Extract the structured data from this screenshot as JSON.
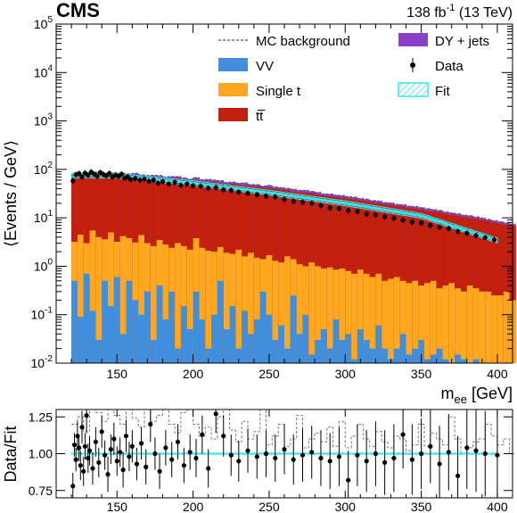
{
  "header": {
    "experiment": "CMS",
    "lumi": "138",
    "lumi_unit": "fb",
    "lumi_exp": "-1",
    "energy": "(13 TeV)"
  },
  "chart_data": [
    {
      "type": "area",
      "ylabel": "⟨Events / GeV⟩",
      "xlabel_main": "m",
      "xlabel_sub": "ee",
      "xlabel_unit": "[GeV]",
      "yscale": "log",
      "xlim": [
        110,
        410
      ],
      "ylim": [
        0.01,
        100000
      ],
      "xticks": [
        150,
        200,
        250,
        300,
        350,
        400
      ],
      "yticks": [
        {
          "value": 0.01,
          "base": "10",
          "exp": "-2"
        },
        {
          "value": 0.1,
          "base": "10",
          "exp": "-1"
        },
        {
          "value": 1,
          "base": "10",
          "exp": "0"
        },
        {
          "value": 10,
          "base": "10",
          "exp": "1"
        },
        {
          "value": 100,
          "base": "10",
          "exp": "2"
        },
        {
          "value": 1000,
          "base": "10",
          "exp": "3"
        },
        {
          "value": 10000,
          "base": "10",
          "exp": "4"
        },
        {
          "value": 100000,
          "base": "10",
          "exp": "5"
        }
      ],
      "legend": [
        {
          "key": "mc",
          "label": "MC background",
          "style": "dashed"
        },
        {
          "key": "dy",
          "label": "DY + jets",
          "color": "#8a3fc8"
        },
        {
          "key": "vv",
          "label": "VV",
          "color": "#3f8fdc"
        },
        {
          "key": "data",
          "label": "Data",
          "style": "marker"
        },
        {
          "key": "st",
          "label": "Single t",
          "color": "#ffa71f"
        },
        {
          "key": "fit",
          "label": "Fit",
          "color": "#2ee8ee"
        },
        {
          "key": "tt",
          "label": "tt̅",
          "color": "#c21f0c"
        }
      ],
      "legend_placement": "top-right",
      "x_start": 120,
      "bin_width": 4,
      "tt": [
        70,
        75,
        79,
        72,
        80,
        76,
        74,
        78,
        73,
        75,
        72,
        70,
        68,
        71,
        66,
        64,
        63,
        66,
        60,
        58,
        59,
        57,
        54,
        55,
        52,
        50,
        50,
        48,
        46,
        45,
        44,
        42,
        41,
        40,
        38,
        37,
        35,
        34,
        33,
        32,
        30,
        29,
        28,
        27,
        26,
        25,
        24,
        23,
        22,
        21,
        20,
        19,
        18.5,
        17.5,
        17,
        16,
        15.5,
        15,
        14,
        13.5,
        13,
        12,
        11.5,
        11,
        10.5,
        10,
        9.5,
        9,
        8.5,
        8,
        7.6,
        7.2,
        6.8
      ],
      "st": [
        3.2,
        4.5,
        3.0,
        5.5,
        4.0,
        3.6,
        5.0,
        3.2,
        4.2,
        3.8,
        3.1,
        4.4,
        3.0,
        2.6,
        3.5,
        2.8,
        2.4,
        3.0,
        2.6,
        2.2,
        3.8,
        2.4,
        2.1,
        2.0,
        2.5,
        1.9,
        1.8,
        2.2,
        1.6,
        1.9,
        1.5,
        1.4,
        1.7,
        1.3,
        1.2,
        1.6,
        1.4,
        1.1,
        1.0,
        1.2,
        1.0,
        0.9,
        0.95,
        0.85,
        0.9,
        0.8,
        0.7,
        0.85,
        0.7,
        0.6,
        0.7,
        0.5,
        0.55,
        0.6,
        0.5,
        0.45,
        0.5,
        0.4,
        0.45,
        0.5,
        0.35,
        0.4,
        0.45,
        0.35,
        0.3,
        0.4,
        0.35,
        0.3,
        0.3,
        0.25,
        0.25,
        0.3,
        0.2
      ],
      "vv": [
        0.5,
        0.09,
        0.7,
        0.12,
        0.03,
        0.5,
        0.15,
        0.6,
        0.04,
        0.5,
        0.2,
        0.1,
        0.3,
        0.03,
        0.4,
        0.08,
        0.3,
        0.02,
        0.15,
        0.05,
        0.3,
        0.08,
        0.02,
        0.1,
        0.5,
        0.05,
        0.15,
        0.02,
        0.12,
        0.04,
        0.08,
        0.3,
        0.1,
        0.03,
        0.06,
        0.02,
        0.25,
        0.04,
        0.1,
        0.015,
        0.03,
        0.05,
        0.02,
        0.08,
        0.03,
        0.04,
        0.012,
        0.05,
        0.03,
        0.02,
        0.06,
        0.02,
        0.012,
        0.02,
        0.04,
        0.015,
        0.02,
        0.03,
        0.012,
        0.015,
        0.02,
        0.012,
        0.01,
        0.015,
        0.012,
        0.01,
        0.012,
        0.01,
        0.01,
        0.01,
        0.01,
        0.01,
        0.01
      ],
      "dy": [
        3,
        3,
        2,
        5,
        4,
        3,
        6,
        3,
        5,
        2,
        8,
        3,
        4,
        2,
        5,
        3,
        6,
        2,
        4,
        3,
        5,
        2,
        6,
        3,
        4,
        2,
        3,
        2,
        5,
        2,
        3,
        2,
        4,
        2,
        3,
        2,
        2.5,
        2,
        3,
        2,
        2.5,
        1.5,
        2,
        1.5,
        2,
        1.5,
        2,
        1.2,
        1.5,
        1.2,
        1.5,
        1.2,
        1.3,
        1.0,
        1.2,
        1.0,
        1.1,
        0.9,
        1.0,
        0.8,
        0.9,
        0.8,
        0.7,
        0.8,
        0.6,
        0.7,
        0.6,
        0.6,
        0.5,
        0.5,
        0.5,
        0.4,
        0.4
      ],
      "fit": {
        "x": [
          120,
          150,
          200,
          250,
          300,
          350,
          400
        ],
        "y": [
          75,
          74,
          52,
          33,
          20,
          11,
          3.4
        ]
      },
      "data": {
        "x": [
          121,
          123,
          125,
          127,
          129,
          131,
          133,
          135,
          137,
          139,
          141,
          143,
          145,
          147,
          149,
          151,
          153,
          155,
          157,
          159,
          162,
          165,
          168,
          171,
          174,
          177,
          180,
          184,
          188,
          192,
          196,
          200,
          205,
          210,
          215,
          220,
          225,
          230,
          236,
          242,
          248,
          254,
          260,
          266,
          272,
          278,
          284,
          290,
          296,
          302,
          308,
          314,
          320,
          326,
          332,
          338,
          344,
          350,
          356,
          362,
          368,
          374,
          380,
          386,
          392,
          398
        ],
        "y": [
          58,
          78,
          82,
          70,
          84,
          76,
          88,
          80,
          72,
          86,
          79,
          74,
          83,
          70,
          76,
          72,
          80,
          66,
          70,
          62,
          65,
          60,
          63,
          57,
          60,
          52,
          56,
          50,
          54,
          47,
          50,
          46,
          45,
          41,
          42,
          38,
          37,
          34,
          32,
          30,
          28,
          27,
          24,
          22,
          21,
          20,
          18,
          16,
          15.5,
          14,
          13.5,
          12,
          11.5,
          10.5,
          9.8,
          9,
          8.2,
          7.8,
          7,
          6.4,
          6,
          5.2,
          4.8,
          4.3,
          3.9,
          3.5
        ]
      }
    },
    {
      "type": "scatter",
      "ylabel": "Data/Fit",
      "xlim": [
        110,
        410
      ],
      "ylim": [
        0.7,
        1.3
      ],
      "yscale": "linear",
      "xticks": [
        150,
        200,
        250,
        300,
        350,
        400
      ],
      "yticks": [
        {
          "value": 0.75,
          "label": "0.75"
        },
        {
          "value": 1.0,
          "label": "1.00"
        },
        {
          "value": 1.25,
          "label": "1.25"
        }
      ],
      "reference_line": 1.0,
      "ratio": {
        "x": [
          121,
          122,
          123,
          124,
          125,
          126,
          127,
          128,
          129,
          130,
          131,
          132,
          134,
          136,
          138,
          140,
          142,
          144,
          146,
          148,
          150,
          152,
          154,
          156,
          158,
          160,
          163,
          166,
          169,
          172,
          175,
          178,
          182,
          186,
          190,
          194,
          198,
          202,
          206,
          210,
          215,
          220,
          225,
          230,
          236,
          242,
          248,
          254,
          260,
          266,
          272,
          278,
          284,
          290,
          296,
          302,
          308,
          314,
          320,
          326,
          332,
          338,
          344,
          350,
          356,
          362,
          368,
          374,
          380,
          386,
          392,
          400
        ],
        "y": [
          0.78,
          1.06,
          0.96,
          1.12,
          1.04,
          0.92,
          1.18,
          0.88,
          1.05,
          1.26,
          0.97,
          1.02,
          0.9,
          1.08,
          0.94,
          1.15,
          0.99,
          0.86,
          1.03,
          1.1,
          0.95,
          1.01,
          0.89,
          1.12,
          0.98,
          1.05,
          0.93,
          1.07,
          0.91,
          1.2,
          1.0,
          0.88,
          1.04,
          0.96,
          1.08,
          0.92,
          1.01,
          0.97,
          1.13,
          0.9,
          1.27,
          1.12,
          0.99,
          0.95,
          1.02,
          0.98,
          1.0,
          0.97,
          1.03,
          0.96,
          0.99,
          1.01,
          0.97,
          0.95,
          0.98,
          0.82,
          0.99,
          0.95,
          1.0,
          0.94,
          0.97,
          1.13,
          0.96,
          1.0,
          1.05,
          0.93,
          1.01,
          0.85,
          1.04,
          1.02,
          1.0,
          0.99
        ],
        "err": [
          0.09,
          0.08,
          0.08,
          0.1,
          0.09,
          0.1,
          0.11,
          0.1,
          0.09,
          0.12,
          0.1,
          0.1,
          0.11,
          0.1,
          0.1,
          0.11,
          0.1,
          0.12,
          0.1,
          0.11,
          0.1,
          0.1,
          0.12,
          0.11,
          0.1,
          0.11,
          0.11,
          0.11,
          0.12,
          0.12,
          0.11,
          0.12,
          0.12,
          0.12,
          0.12,
          0.12,
          0.12,
          0.13,
          0.13,
          0.13,
          0.13,
          0.14,
          0.14,
          0.14,
          0.15,
          0.15,
          0.16,
          0.16,
          0.17,
          0.17,
          0.18,
          0.18,
          0.19,
          0.19,
          0.2,
          0.2,
          0.21,
          0.21,
          0.22,
          0.22,
          0.23,
          0.23,
          0.24,
          0.24,
          0.25,
          0.26,
          0.26,
          0.27,
          0.28,
          0.28,
          0.29,
          0.3
        ]
      },
      "mc_ratio": [
        1.2,
        1.25,
        1.15,
        1.3,
        1.28,
        1.22,
        1.3,
        1.26,
        1.2,
        1.3,
        1.24,
        1.18,
        1.3,
        1.22,
        1.26,
        1.3,
        1.2,
        1.14,
        1.28,
        1.3,
        1.2,
        1.12,
        1.18,
        1.1,
        1.25,
        1.3,
        1.16,
        1.08,
        1.22,
        1.1,
        1.15,
        1.3,
        1.06,
        1.12,
        1.2,
        1.05,
        1.1,
        1.26,
        1.04,
        1.1,
        1.14,
        1.08,
        1.18,
        1.05,
        1.22,
        1.04,
        1.12,
        1.2,
        1.1,
        1.05,
        1.15,
        1.08,
        1.04,
        1.12,
        1.1,
        1.02,
        1.06,
        1.2,
        1.05,
        1.14,
        1.1,
        1.06,
        1.25,
        1.1,
        1.0,
        1.04,
        1.08,
        1.1,
        1.2,
        1.12,
        1.06,
        1.1,
        1.0
      ]
    }
  ]
}
